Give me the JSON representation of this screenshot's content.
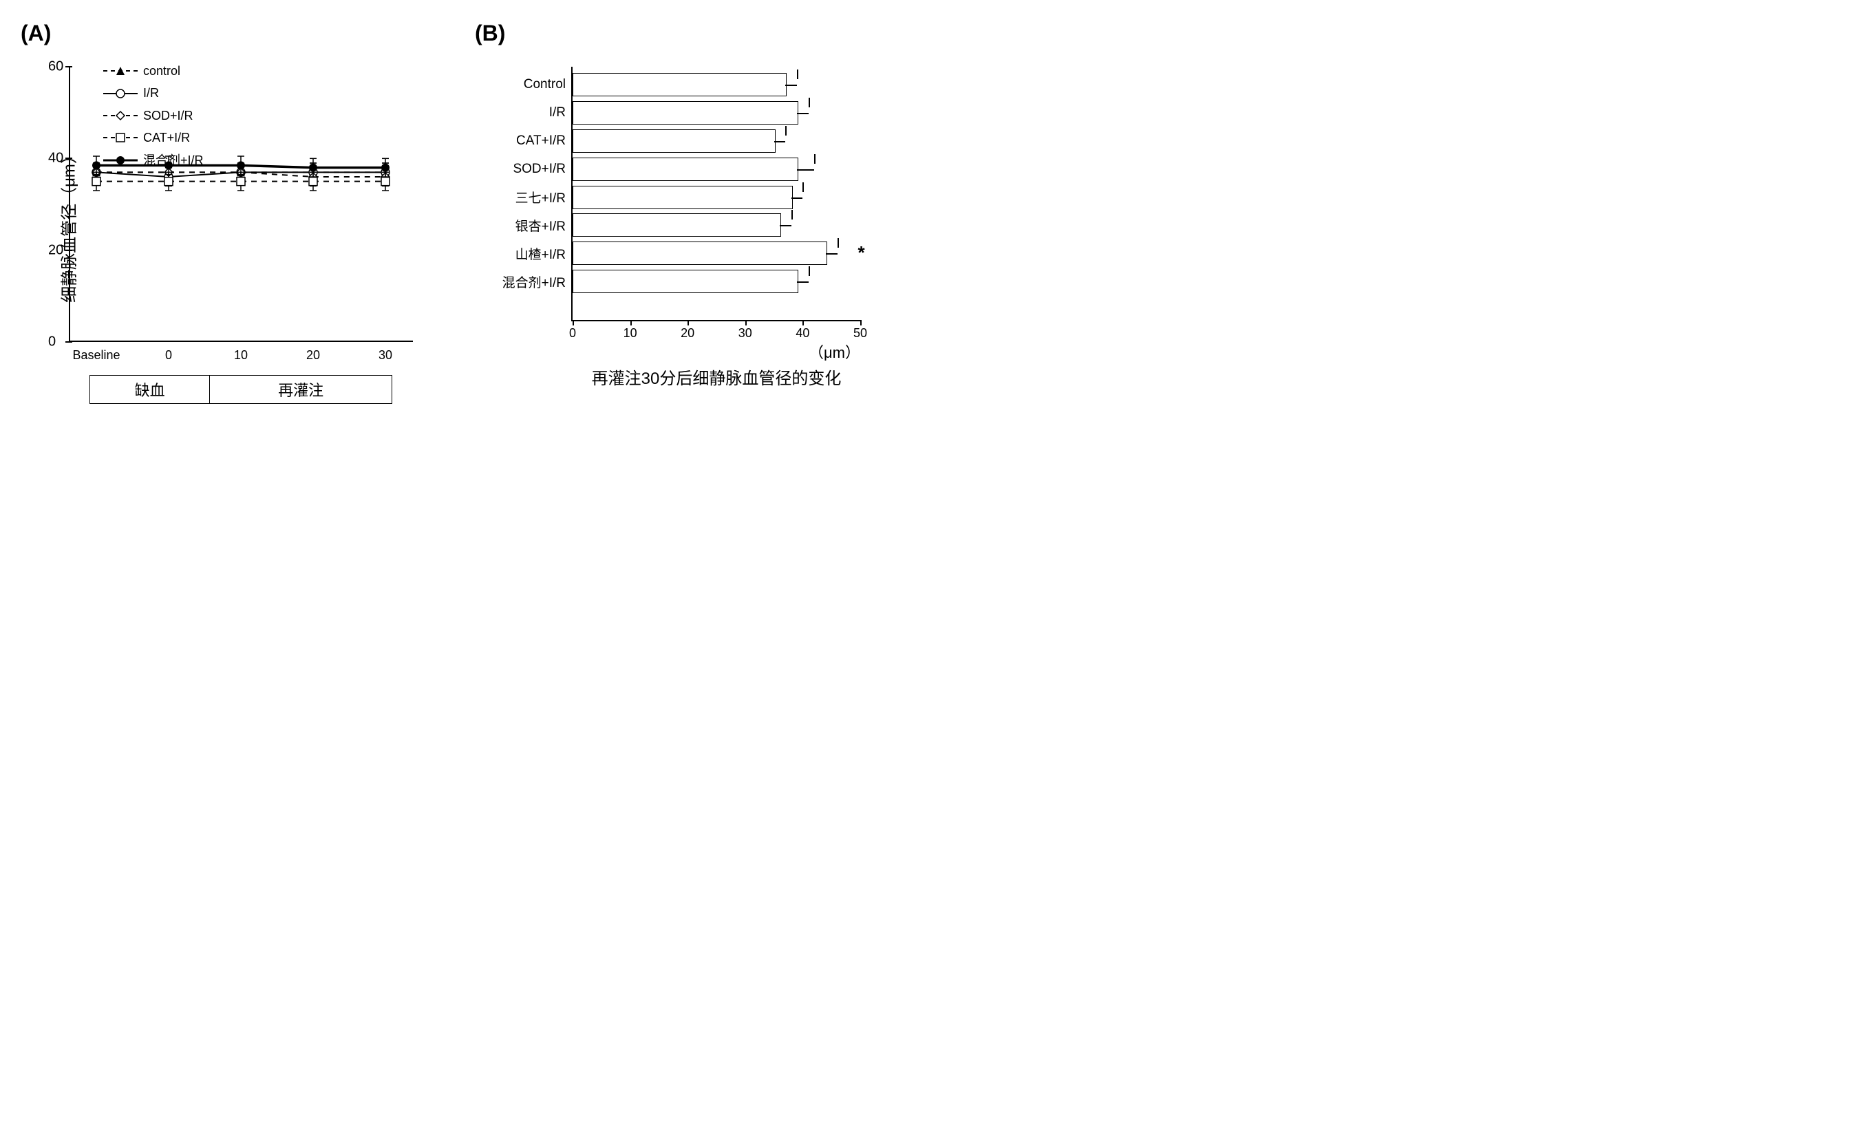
{
  "panel_a": {
    "label": "(A)",
    "type": "line",
    "ylabel": "细静脉血管径（μm）",
    "ylim": [
      0,
      60
    ],
    "yticks": [
      0,
      20,
      40,
      60
    ],
    "x_categories": [
      "Baseline",
      "0",
      "10",
      "20",
      "30"
    ],
    "phases": {
      "ischemia": "缺血",
      "reperfusion": "再灌注"
    },
    "legend": [
      {
        "name": "control",
        "dash": "dashed",
        "marker": "triangle-filled",
        "color": "#000000"
      },
      {
        "name": "I/R",
        "dash": "solid",
        "marker": "circle-open",
        "color": "#000000"
      },
      {
        "name": "SOD+I/R",
        "dash": "dashed",
        "marker": "diamond-open",
        "color": "#000000"
      },
      {
        "name": "CAT+I/R",
        "dash": "dashed",
        "marker": "square-open",
        "color": "#000000"
      },
      {
        "name": "混合剂+I/R",
        "dash": "solid",
        "marker": "circle-filled",
        "color": "#000000",
        "thick": true
      }
    ],
    "series": {
      "control": {
        "y": [
          37,
          37,
          37,
          37,
          37
        ],
        "err": [
          2,
          2,
          2,
          2,
          2
        ]
      },
      "I/R": {
        "y": [
          37,
          36,
          37,
          37,
          37
        ],
        "err": [
          2,
          2,
          2,
          2,
          2
        ]
      },
      "SOD+I/R": {
        "y": [
          37,
          37,
          37,
          36,
          36
        ],
        "err": [
          2,
          2,
          2,
          2,
          2
        ]
      },
      "CAT+I/R": {
        "y": [
          35,
          35,
          35,
          35,
          35
        ],
        "err": [
          2,
          2,
          2,
          2,
          2
        ]
      },
      "混合剂+I/R": {
        "y": [
          38.5,
          38.5,
          38.5,
          38,
          38
        ],
        "err": [
          2,
          2,
          2,
          2,
          2
        ]
      }
    },
    "label_fontsize": 24,
    "tick_fontsize": 20,
    "background_color": "#ffffff"
  },
  "panel_b": {
    "label": "(B)",
    "type": "bar-horizontal",
    "title": "再灌注30分后细静脉血管径的变化",
    "xunit": "（μm）",
    "xlim": [
      0,
      50
    ],
    "xticks": [
      0,
      10,
      20,
      30,
      40,
      50
    ],
    "bars": [
      {
        "label": "Control",
        "value": 37,
        "err": 2,
        "color": "#ffffff"
      },
      {
        "label": "I/R",
        "value": 39,
        "err": 2,
        "color": "#ffffff"
      },
      {
        "label": "CAT+I/R",
        "value": 35,
        "err": 2,
        "color": "#ffffff"
      },
      {
        "label": "SOD+I/R",
        "value": 39,
        "err": 3,
        "color": "#ffffff"
      },
      {
        "label": "三七+I/R",
        "value": 38,
        "err": 2,
        "color": "#ffffff"
      },
      {
        "label": "银杏+I/R",
        "value": 36,
        "err": 2,
        "color": "#ffffff"
      },
      {
        "label": "山楂+I/R",
        "value": 44,
        "err": 2,
        "color": "#ffffff",
        "annotation": "*"
      },
      {
        "label": "混合剂+I/R",
        "value": 39,
        "err": 2,
        "color": "#ffffff"
      }
    ],
    "bar_border_color": "#000000",
    "title_fontsize": 24,
    "tick_fontsize": 18,
    "background_color": "#ffffff"
  }
}
